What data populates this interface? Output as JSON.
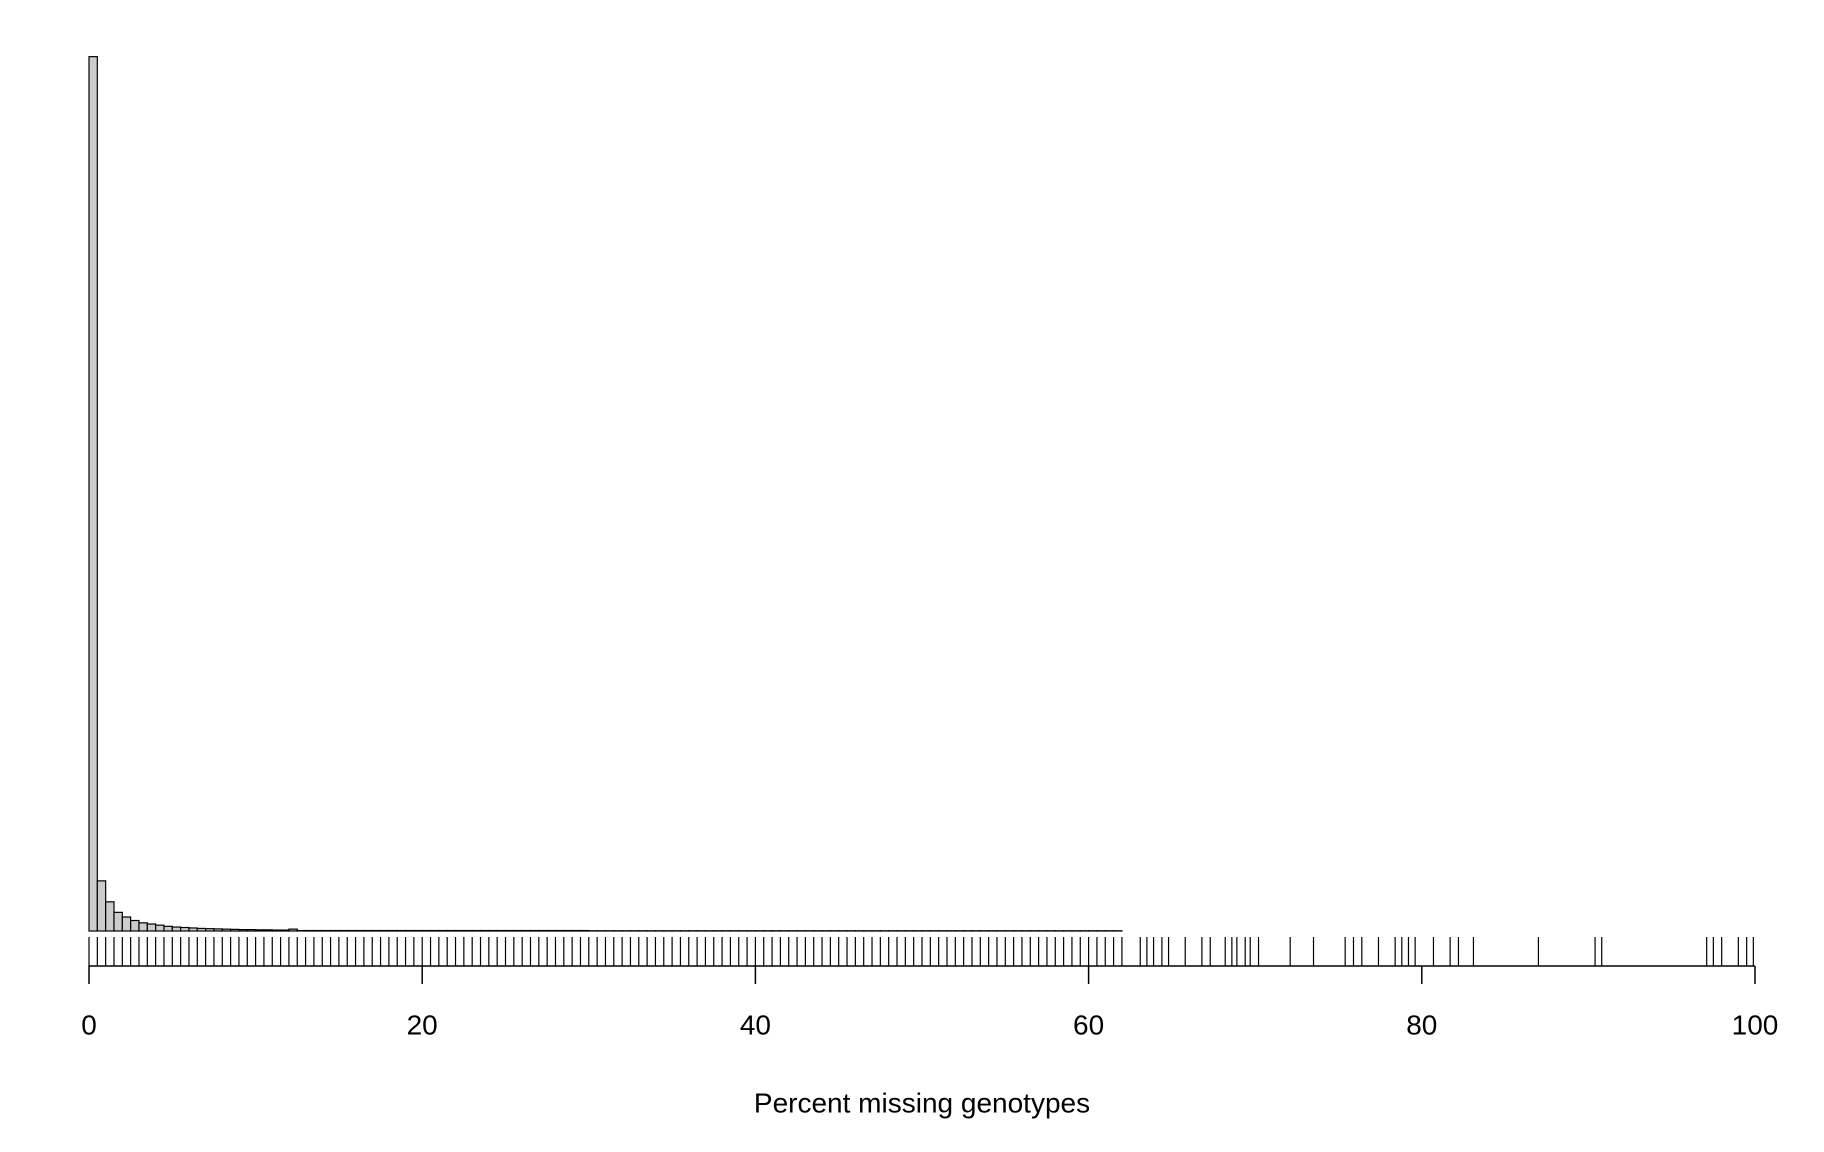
{
  "chart_data": {
    "type": "histogram",
    "xlabel": "Percent missing genotypes",
    "xlim": [
      0,
      100
    ],
    "xticks": [
      0,
      20,
      40,
      60,
      80,
      100
    ],
    "ylim": [
      0,
      3800
    ],
    "color": "#cccccc",
    "bins": [
      0,
      0.5,
      1,
      1.5,
      2,
      2.5,
      3,
      3.5,
      4,
      4.5,
      5,
      5.5,
      6,
      6.5,
      7,
      7.5,
      8,
      8.5,
      9,
      9.5,
      10,
      10.5,
      11,
      11.5,
      12,
      12.5,
      13,
      13.5,
      14,
      14.5,
      15,
      15.5,
      16,
      16.5,
      17,
      17.5,
      18,
      18.5,
      19,
      19.5,
      20,
      20.5,
      21,
      21.5,
      22,
      22.5,
      23,
      23.5,
      24,
      24.5,
      25,
      25.5,
      26,
      26.5,
      27,
      27.5,
      28,
      28.5,
      29,
      29.5,
      30,
      30.5,
      31,
      31.5,
      32,
      32.5,
      33,
      33.5,
      34,
      34.5,
      35,
      35.5,
      36,
      36.5,
      37,
      37.5,
      38,
      38.5,
      39,
      39.5,
      40,
      40.5,
      41,
      41.5,
      42,
      42.5,
      43,
      43.5,
      44,
      44.5,
      45,
      45.5,
      46,
      46.5,
      47,
      47.5,
      48,
      48.5,
      49,
      49.5,
      50,
      50.5,
      51,
      51.5,
      52,
      52.5,
      53,
      53.5,
      54,
      54.5,
      55,
      55.5,
      56,
      56.5,
      57,
      57.5,
      58,
      58.5,
      59,
      59.5,
      60,
      60.5,
      61,
      61.5,
      62,
      62.5,
      63,
      63.5,
      64,
      64.5,
      65,
      65.5,
      66,
      66.5,
      67,
      67.5,
      68,
      68.5,
      69,
      69.5,
      70,
      70.5,
      71,
      71.5,
      72,
      72.5,
      73,
      73.5,
      74,
      74.5,
      75,
      75.5,
      76,
      76.5,
      77,
      77.5,
      78,
      78.5,
      79,
      79.5,
      80,
      80.5,
      81,
      81.5,
      82,
      82.5,
      83,
      83.5,
      84,
      84.5,
      85,
      85.5,
      86,
      86.5,
      87,
      87.5,
      88,
      88.5,
      89,
      89.5,
      90,
      90.5,
      91,
      91.5,
      92,
      92.5,
      93,
      93.5,
      94,
      94.5,
      95,
      95.5,
      96,
      96.5,
      97,
      97.5,
      98,
      98.5,
      99,
      99.5,
      100
    ],
    "counts": [
      3750,
      215,
      125,
      80,
      60,
      45,
      35,
      30,
      25,
      20,
      17,
      15,
      13,
      11,
      10,
      9,
      8,
      7,
      6,
      6,
      5,
      5,
      4,
      4,
      8,
      2,
      2,
      2,
      2,
      2,
      2,
      2,
      2,
      2,
      2,
      2,
      2,
      2,
      2,
      2,
      2,
      2,
      2,
      2,
      2,
      2,
      2,
      2,
      2,
      2,
      2,
      2,
      2,
      2,
      2,
      2,
      2,
      2,
      2,
      2,
      1,
      1,
      1,
      1,
      1,
      1,
      1,
      1,
      1,
      1,
      1,
      1,
      1,
      1,
      1,
      1,
      1,
      1,
      1,
      1,
      1,
      1,
      1,
      1,
      1,
      1,
      1,
      1,
      1,
      1,
      1,
      1,
      1,
      1,
      1,
      1,
      1,
      1,
      1,
      1,
      1,
      1,
      1,
      1,
      1,
      1,
      1,
      1,
      1,
      1,
      1,
      1,
      1,
      1,
      1,
      1,
      1,
      1,
      1,
      1,
      1,
      1,
      1,
      1,
      0,
      0,
      0,
      0,
      0,
      0,
      0,
      0,
      0,
      0,
      0,
      0,
      0,
      0,
      0,
      0,
      0,
      0,
      0,
      0,
      0,
      0,
      0,
      0,
      0,
      0,
      0,
      0,
      0,
      0,
      0,
      0,
      0,
      0,
      0,
      0,
      0,
      0,
      0,
      0,
      0,
      0,
      0,
      0,
      0,
      0,
      0,
      0,
      0,
      0,
      0,
      0,
      0,
      0,
      0,
      0,
      0,
      0,
      0,
      0,
      0,
      0,
      0,
      0,
      0,
      0,
      0,
      0,
      0,
      0,
      0,
      0,
      0,
      0,
      0,
      0
    ],
    "rug": [
      0,
      0.5,
      1,
      1.5,
      2,
      2.5,
      3,
      3.5,
      4,
      4.5,
      5,
      5.5,
      6,
      6.5,
      7,
      7.5,
      8,
      8.5,
      9,
      9.5,
      10,
      10.5,
      11,
      11.5,
      12,
      12.5,
      13,
      13.5,
      14,
      14.5,
      15,
      15.5,
      16,
      16.5,
      17,
      17.5,
      18,
      18.5,
      19,
      19.5,
      20,
      20.5,
      21,
      21.5,
      22,
      22.5,
      23,
      23.5,
      24,
      24.5,
      25,
      25.5,
      26,
      26.5,
      27,
      27.5,
      28,
      28.5,
      29,
      29.5,
      30,
      30.5,
      31,
      31.5,
      32,
      32.5,
      33,
      33.5,
      34,
      34.5,
      35,
      35.5,
      36,
      36.5,
      37,
      37.5,
      38,
      38.5,
      39,
      39.5,
      40,
      40.5,
      41,
      41.5,
      42,
      42.5,
      43,
      43.5,
      44,
      44.5,
      45,
      45.5,
      46,
      46.5,
      47,
      47.5,
      48,
      48.5,
      49,
      49.5,
      50,
      50.5,
      51,
      51.5,
      52,
      52.5,
      53,
      53.5,
      54,
      54.5,
      55,
      55.5,
      56,
      56.5,
      57,
      57.5,
      58,
      58.5,
      59,
      59.5,
      60,
      60.5,
      61,
      61.5,
      62,
      63.1,
      63.5,
      63.9,
      64.4,
      64.8,
      65.8,
      66.8,
      67.3,
      68.2,
      68.6,
      68.9,
      69.4,
      69.7,
      70.2,
      72.1,
      73.5,
      75.4,
      75.9,
      76.4,
      77.4,
      78.4,
      78.8,
      79.2,
      79.6,
      80.7,
      81.7,
      82.2,
      83.1,
      87,
      90.4,
      90.8,
      97.1,
      97.5,
      98,
      99,
      99.5,
      99.9
    ]
  }
}
